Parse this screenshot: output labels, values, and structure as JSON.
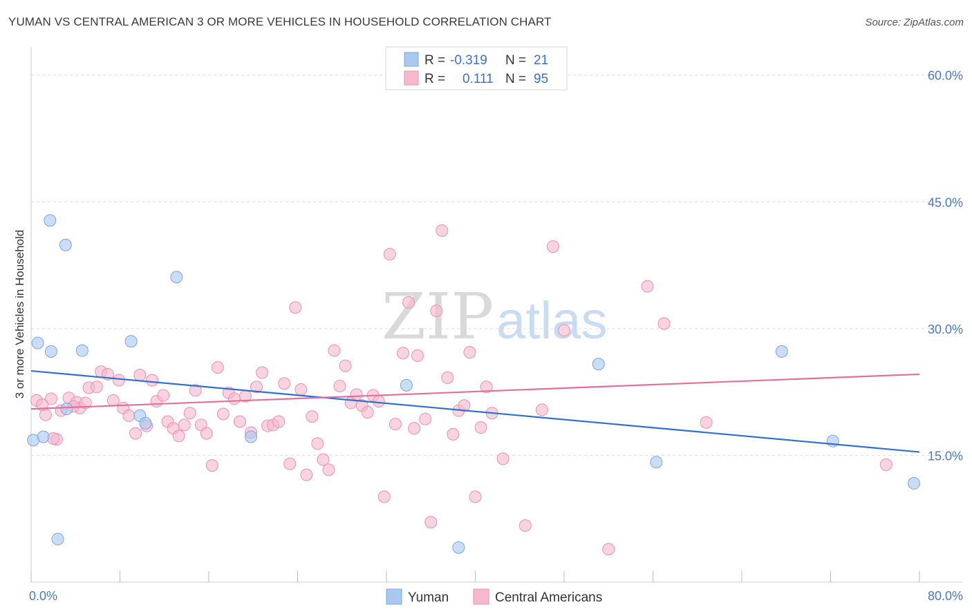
{
  "header": {
    "title": "YUMAN VS CENTRAL AMERICAN 3 OR MORE VEHICLES IN HOUSEHOLD CORRELATION CHART",
    "source": "Source: ZipAtlas.com"
  },
  "watermark": {
    "zip": "ZIP",
    "atlas": "atlas"
  },
  "legend": {
    "rows": [
      {
        "r_label": "R =",
        "r_value": "-0.319",
        "n_label": "N =",
        "n_value": "21",
        "color": "#a9c8f0"
      },
      {
        "r_label": "R =",
        "r_value": "0.111",
        "n_label": "N =",
        "n_value": "95",
        "color": "#f5b8cc"
      }
    ]
  },
  "chart_data": {
    "type": "scatter",
    "title": "YUMAN VS CENTRAL AMERICAN 3 OR MORE VEHICLES IN HOUSEHOLD CORRELATION CHART",
    "xlabel": "",
    "ylabel": "3 or more Vehicles in Household",
    "xlim": [
      0,
      80
    ],
    "ylim": [
      0,
      63
    ],
    "x_tick_labels": [
      "0.0%",
      "80.0%"
    ],
    "y_ticks": [
      15,
      30,
      45,
      60
    ],
    "y_tick_labels": [
      "15.0%",
      "30.0%",
      "45.0%",
      "60.0%"
    ],
    "grid": true,
    "legend_position": "top-center",
    "series": [
      {
        "name": "Yuman",
        "color": "#a9c8f0",
        "stroke": "#7aa6e0",
        "trend_color": "#2f6fd0",
        "trend": {
          "x": [
            0,
            80
          ],
          "y": [
            25.0,
            15.4
          ]
        },
        "points": [
          [
            0.2,
            16.8
          ],
          [
            1.1,
            17.2
          ],
          [
            0.6,
            28.3
          ],
          [
            1.8,
            27.3
          ],
          [
            1.7,
            42.8
          ],
          [
            3.1,
            39.9
          ],
          [
            4.6,
            27.4
          ],
          [
            3.2,
            20.5
          ],
          [
            9.0,
            28.5
          ],
          [
            9.8,
            19.7
          ],
          [
            10.3,
            18.8
          ],
          [
            13.1,
            36.1
          ],
          [
            19.8,
            17.2
          ],
          [
            33.8,
            23.3
          ],
          [
            38.5,
            4.1
          ],
          [
            51.1,
            25.8
          ],
          [
            56.3,
            14.2
          ],
          [
            67.6,
            27.3
          ],
          [
            72.2,
            16.7
          ],
          [
            79.5,
            11.7
          ],
          [
            2.4,
            5.1
          ]
        ]
      },
      {
        "name": "Central Americans",
        "color": "#f5b8cc",
        "stroke": "#ec8fb0",
        "trend_color": "#e0709a",
        "trend": {
          "x": [
            0,
            80
          ],
          "y": [
            20.5,
            24.6
          ]
        },
        "points": [
          [
            0.5,
            21.5
          ],
          [
            1.3,
            19.8
          ],
          [
            2.3,
            16.9
          ],
          [
            1.8,
            21.7
          ],
          [
            2.7,
            20.3
          ],
          [
            3.4,
            21.8
          ],
          [
            4.1,
            21.3
          ],
          [
            4.4,
            20.6
          ],
          [
            4.9,
            21.2
          ],
          [
            5.2,
            23.0
          ],
          [
            5.9,
            23.1
          ],
          [
            6.3,
            24.9
          ],
          [
            6.9,
            24.6
          ],
          [
            7.4,
            21.5
          ],
          [
            7.9,
            23.9
          ],
          [
            8.3,
            20.6
          ],
          [
            8.8,
            19.7
          ],
          [
            9.4,
            17.6
          ],
          [
            9.8,
            24.5
          ],
          [
            10.4,
            18.5
          ],
          [
            10.9,
            23.9
          ],
          [
            11.3,
            21.4
          ],
          [
            11.9,
            22.1
          ],
          [
            12.3,
            19.0
          ],
          [
            12.8,
            18.2
          ],
          [
            13.3,
            17.3
          ],
          [
            13.8,
            18.6
          ],
          [
            14.3,
            20.0
          ],
          [
            14.8,
            22.7
          ],
          [
            15.3,
            18.6
          ],
          [
            15.8,
            17.6
          ],
          [
            16.3,
            13.8
          ],
          [
            16.8,
            25.4
          ],
          [
            17.3,
            19.9
          ],
          [
            17.8,
            22.4
          ],
          [
            18.3,
            21.7
          ],
          [
            18.8,
            19.0
          ],
          [
            19.3,
            22.0
          ],
          [
            19.8,
            17.7
          ],
          [
            20.3,
            23.1
          ],
          [
            20.8,
            24.8
          ],
          [
            21.3,
            18.5
          ],
          [
            21.8,
            18.6
          ],
          [
            22.3,
            19.0
          ],
          [
            22.8,
            23.5
          ],
          [
            23.3,
            14.0
          ],
          [
            23.8,
            32.5
          ],
          [
            24.3,
            22.8
          ],
          [
            24.8,
            12.7
          ],
          [
            25.3,
            19.6
          ],
          [
            25.8,
            16.4
          ],
          [
            26.3,
            14.5
          ],
          [
            26.8,
            13.3
          ],
          [
            27.3,
            27.4
          ],
          [
            27.8,
            23.2
          ],
          [
            28.3,
            25.6
          ],
          [
            28.8,
            21.2
          ],
          [
            29.3,
            22.2
          ],
          [
            29.8,
            20.9
          ],
          [
            30.3,
            20.1
          ],
          [
            30.8,
            22.1
          ],
          [
            31.3,
            21.4
          ],
          [
            31.8,
            10.1
          ],
          [
            32.3,
            38.8
          ],
          [
            32.8,
            18.7
          ],
          [
            33.5,
            27.1
          ],
          [
            34.0,
            33.1
          ],
          [
            34.5,
            18.2
          ],
          [
            34.8,
            26.8
          ],
          [
            35.5,
            19.3
          ],
          [
            36.0,
            7.1
          ],
          [
            36.5,
            32.1
          ],
          [
            37.0,
            41.6
          ],
          [
            37.5,
            24.2
          ],
          [
            38.0,
            17.5
          ],
          [
            38.5,
            20.3
          ],
          [
            39.0,
            20.9
          ],
          [
            39.5,
            27.2
          ],
          [
            40.0,
            10.1
          ],
          [
            40.5,
            18.3
          ],
          [
            41.0,
            23.1
          ],
          [
            41.5,
            20.0
          ],
          [
            42.5,
            14.6
          ],
          [
            44.5,
            6.7
          ],
          [
            46.0,
            20.4
          ],
          [
            47.0,
            39.7
          ],
          [
            48.0,
            29.8
          ],
          [
            52.0,
            3.9
          ],
          [
            55.5,
            35.0
          ],
          [
            57.0,
            30.6
          ],
          [
            60.8,
            18.9
          ],
          [
            77.0,
            13.9
          ],
          [
            1.0,
            21.0
          ],
          [
            2.0,
            17.0
          ],
          [
            3.8,
            20.8
          ]
        ]
      }
    ]
  }
}
